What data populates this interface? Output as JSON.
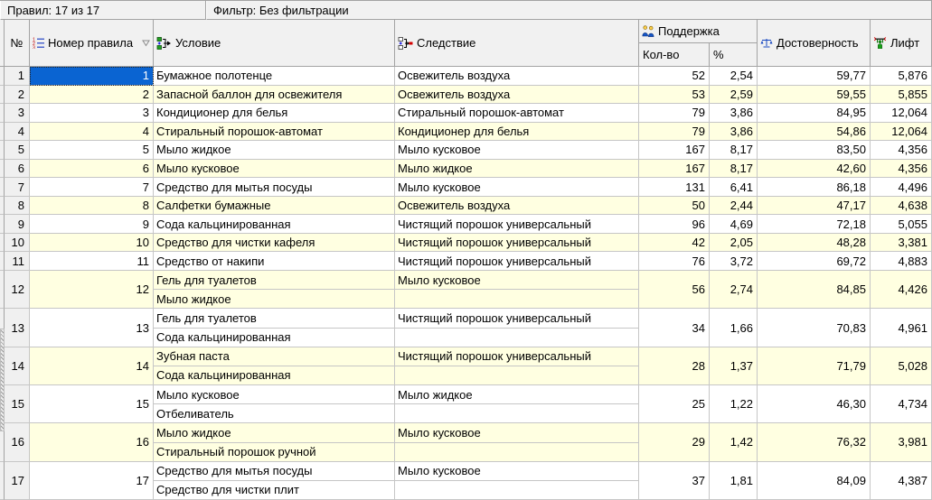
{
  "status_bar": {
    "rules_label": "Правил: 17 из 17",
    "filter_label": "Фильтр: Без фильтрации"
  },
  "table": {
    "headers": {
      "num": "№",
      "rule_number": "Номер правила",
      "condition": "Условие",
      "consequence": "Следствие",
      "support": "Поддержка",
      "support_count": "Кол-во",
      "support_pct": "%",
      "confidence": "Достоверность",
      "lift": "Лифт"
    },
    "header_icons": {
      "rule_number": "numbered-list-icon",
      "rule_number_sort": "sort-descending-icon",
      "condition": "branch-condition-icon",
      "consequence": "branch-consequence-icon",
      "support": "people-icon",
      "confidence": "scales-icon",
      "lift": "weightlifter-icon"
    },
    "rows": [
      {
        "num": "1",
        "rule": "1",
        "conditions": [
          "Бумажное полотенце"
        ],
        "consequence": "Освежитель воздуха",
        "count": "52",
        "pct": "2,54",
        "confidence": "59,77",
        "lift": "5,876",
        "selected": true
      },
      {
        "num": "2",
        "rule": "2",
        "conditions": [
          "Запасной баллон для освежителя"
        ],
        "consequence": "Освежитель воздуха",
        "count": "53",
        "pct": "2,59",
        "confidence": "59,55",
        "lift": "5,855"
      },
      {
        "num": "3",
        "rule": "3",
        "conditions": [
          "Кондиционер для белья"
        ],
        "consequence": "Стиральный порошок-автомат",
        "count": "79",
        "pct": "3,86",
        "confidence": "84,95",
        "lift": "12,064"
      },
      {
        "num": "4",
        "rule": "4",
        "conditions": [
          "Стиральный порошок-автомат"
        ],
        "consequence": "Кондиционер для белья",
        "count": "79",
        "pct": "3,86",
        "confidence": "54,86",
        "lift": "12,064"
      },
      {
        "num": "5",
        "rule": "5",
        "conditions": [
          "Мыло жидкое"
        ],
        "consequence": "Мыло кусковое",
        "count": "167",
        "pct": "8,17",
        "confidence": "83,50",
        "lift": "4,356"
      },
      {
        "num": "6",
        "rule": "6",
        "conditions": [
          "Мыло кусковое"
        ],
        "consequence": "Мыло жидкое",
        "count": "167",
        "pct": "8,17",
        "confidence": "42,60",
        "lift": "4,356"
      },
      {
        "num": "7",
        "rule": "7",
        "conditions": [
          "Средство для мытья посуды"
        ],
        "consequence": "Мыло кусковое",
        "count": "131",
        "pct": "6,41",
        "confidence": "86,18",
        "lift": "4,496"
      },
      {
        "num": "8",
        "rule": "8",
        "conditions": [
          "Салфетки бумажные"
        ],
        "consequence": "Освежитель воздуха",
        "count": "50",
        "pct": "2,44",
        "confidence": "47,17",
        "lift": "4,638"
      },
      {
        "num": "9",
        "rule": "9",
        "conditions": [
          "Сода кальцинированная"
        ],
        "consequence": "Чистящий порошок универсальный",
        "count": "96",
        "pct": "4,69",
        "confidence": "72,18",
        "lift": "5,055"
      },
      {
        "num": "10",
        "rule": "10",
        "conditions": [
          "Средство для чистки кафеля"
        ],
        "consequence": "Чистящий порошок универсальный",
        "count": "42",
        "pct": "2,05",
        "confidence": "48,28",
        "lift": "3,381"
      },
      {
        "num": "11",
        "rule": "11",
        "conditions": [
          "Средство от накипи"
        ],
        "consequence": "Чистящий порошок универсальный",
        "count": "76",
        "pct": "3,72",
        "confidence": "69,72",
        "lift": "4,883"
      },
      {
        "num": "12",
        "rule": "12",
        "conditions": [
          "Гель для туалетов",
          "Мыло жидкое"
        ],
        "consequence": "Мыло кусковое",
        "count": "56",
        "pct": "2,74",
        "confidence": "84,85",
        "lift": "4,426"
      },
      {
        "num": "13",
        "rule": "13",
        "conditions": [
          "Гель для туалетов",
          "Сода кальцинированная"
        ],
        "consequence": "Чистящий порошок универсальный",
        "count": "34",
        "pct": "1,66",
        "confidence": "70,83",
        "lift": "4,961"
      },
      {
        "num": "14",
        "rule": "14",
        "conditions": [
          "Зубная паста",
          "Сода кальцинированная"
        ],
        "consequence": "Чистящий порошок универсальный",
        "count": "28",
        "pct": "1,37",
        "confidence": "71,79",
        "lift": "5,028"
      },
      {
        "num": "15",
        "rule": "15",
        "conditions": [
          "Мыло кусковое",
          "Отбеливатель"
        ],
        "consequence": "Мыло жидкое",
        "count": "25",
        "pct": "1,22",
        "confidence": "46,30",
        "lift": "4,734"
      },
      {
        "num": "16",
        "rule": "16",
        "conditions": [
          "Мыло жидкое",
          "Стиральный порошок ручной"
        ],
        "consequence": "Мыло кусковое",
        "count": "29",
        "pct": "1,42",
        "confidence": "76,32",
        "lift": "3,981"
      },
      {
        "num": "17",
        "rule": "17",
        "conditions": [
          "Средство для мытья посуды",
          "Средство для чистки плит"
        ],
        "consequence": "Мыло кусковое",
        "count": "37",
        "pct": "1,81",
        "confidence": "84,09",
        "lift": "4,387"
      }
    ]
  },
  "colors": {
    "selection": "#0a64d2",
    "row_alternate": "#ffffe1",
    "header_background": "#f1f1f1",
    "grid_line": "#c6c6c6"
  }
}
